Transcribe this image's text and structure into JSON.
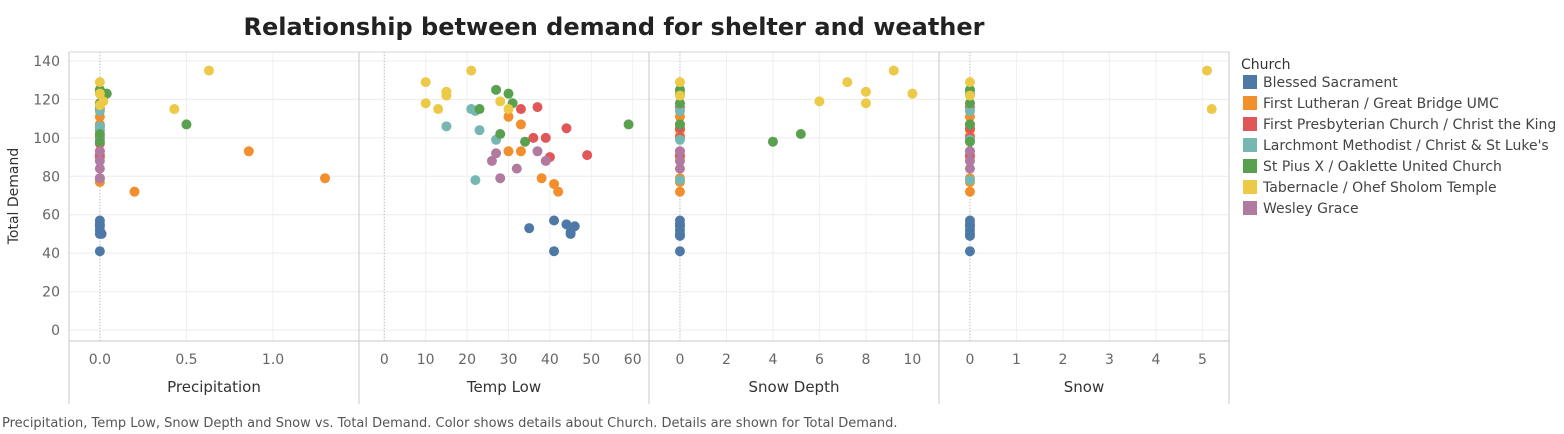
{
  "caption": "Precipitation, Temp Low, Snow Depth and Snow vs. Total Demand.  Color shows details about Church.  Details are shown for Total Demand.",
  "legend": {
    "title": "Church",
    "items": [
      {
        "label": "Blessed Sacrament",
        "color": "#4e79a7"
      },
      {
        "label": "First Lutheran / Great Bridge UMC",
        "color": "#f28e2b"
      },
      {
        "label": "First Presbyterian Church / Christ the King",
        "color": "#e15759"
      },
      {
        "label": "Larchmont Methodist / Christ & St Luke's",
        "color": "#76b7b2"
      },
      {
        "label": "St Pius X / Oaklette United Church",
        "color": "#59a14f"
      },
      {
        "label": "Tabernacle / Ohef Sholom Temple",
        "color": "#edc948"
      },
      {
        "label": "Wesley Grace",
        "color": "#b07aa1"
      }
    ]
  },
  "chart_data": {
    "type": "scatter",
    "title": "Relationship between demand for shelter and weather",
    "ylabel": "Total Demand",
    "ylim": [
      0,
      140
    ],
    "yticks": [
      0,
      20,
      40,
      60,
      80,
      100,
      120,
      140
    ],
    "grid": true,
    "legend_position": "right",
    "panels": [
      {
        "xlabel": "Precipitation",
        "xlim": [
          -0.08,
          1.45
        ],
        "xticks": [
          0.0,
          0.5,
          1.0
        ],
        "tick_decimals": 1,
        "points": [
          {
            "s": 0,
            "x": 0,
            "y": 57
          },
          {
            "s": 0,
            "x": 0,
            "y": 55
          },
          {
            "s": 0,
            "x": 0,
            "y": 54
          },
          {
            "s": 0,
            "x": 0,
            "y": 52
          },
          {
            "s": 0,
            "x": 0,
            "y": 50
          },
          {
            "s": 0,
            "x": 0.01,
            "y": 50
          },
          {
            "s": 0,
            "x": 0,
            "y": 41
          },
          {
            "s": 1,
            "x": 0,
            "y": 111
          },
          {
            "s": 1,
            "x": 0,
            "y": 107
          },
          {
            "s": 1,
            "x": 0,
            "y": 104
          },
          {
            "s": 1,
            "x": 0,
            "y": 101
          },
          {
            "s": 1,
            "x": 0,
            "y": 93
          },
          {
            "s": 1,
            "x": 0,
            "y": 79
          },
          {
            "s": 1,
            "x": 0,
            "y": 77
          },
          {
            "s": 1,
            "x": 0.2,
            "y": 72
          },
          {
            "s": 1,
            "x": 0.86,
            "y": 93
          },
          {
            "s": 1,
            "x": 1.3,
            "y": 79
          },
          {
            "s": 2,
            "x": 0,
            "y": 115
          },
          {
            "s": 2,
            "x": 0,
            "y": 106
          },
          {
            "s": 2,
            "x": 0,
            "y": 100
          },
          {
            "s": 2,
            "x": 0,
            "y": 97
          },
          {
            "s": 2,
            "x": 0,
            "y": 91
          },
          {
            "s": 2,
            "x": 0,
            "y": 90
          },
          {
            "s": 3,
            "x": 0,
            "y": 114
          },
          {
            "s": 3,
            "x": 0,
            "y": 106
          },
          {
            "s": 3,
            "x": 0,
            "y": 104
          },
          {
            "s": 3,
            "x": 0,
            "y": 99
          },
          {
            "s": 3,
            "x": 0,
            "y": 79
          },
          {
            "s": 4,
            "x": 0,
            "y": 125
          },
          {
            "s": 4,
            "x": 0,
            "y": 124
          },
          {
            "s": 4,
            "x": 0,
            "y": 118
          },
          {
            "s": 4,
            "x": 0,
            "y": 117
          },
          {
            "s": 4,
            "x": 0,
            "y": 102
          },
          {
            "s": 4,
            "x": 0,
            "y": 98
          },
          {
            "s": 4,
            "x": 0.04,
            "y": 123
          },
          {
            "s": 4,
            "x": 0.5,
            "y": 107
          },
          {
            "s": 5,
            "x": 0,
            "y": 129
          },
          {
            "s": 5,
            "x": 0,
            "y": 123
          },
          {
            "s": 5,
            "x": 0.02,
            "y": 119
          },
          {
            "s": 5,
            "x": 0,
            "y": 117
          },
          {
            "s": 5,
            "x": 0.43,
            "y": 115
          },
          {
            "s": 5,
            "x": 0.63,
            "y": 135
          },
          {
            "s": 6,
            "x": 0,
            "y": 93
          },
          {
            "s": 6,
            "x": 0,
            "y": 88
          },
          {
            "s": 6,
            "x": 0,
            "y": 84
          },
          {
            "s": 6,
            "x": 0,
            "y": 79
          }
        ]
      },
      {
        "xlabel": "Temp Low",
        "xlim": [
          -2,
          62
        ],
        "xticks": [
          0,
          10,
          20,
          30,
          40,
          50,
          60
        ],
        "tick_decimals": 0,
        "points": [
          {
            "s": 0,
            "x": 35,
            "y": 53
          },
          {
            "s": 0,
            "x": 41,
            "y": 57
          },
          {
            "s": 0,
            "x": 44,
            "y": 55
          },
          {
            "s": 0,
            "x": 45,
            "y": 50
          },
          {
            "s": 0,
            "x": 45,
            "y": 51
          },
          {
            "s": 0,
            "x": 46,
            "y": 54
          },
          {
            "s": 0,
            "x": 41,
            "y": 41
          },
          {
            "s": 1,
            "x": 30,
            "y": 111
          },
          {
            "s": 1,
            "x": 33,
            "y": 107
          },
          {
            "s": 1,
            "x": 30,
            "y": 93
          },
          {
            "s": 1,
            "x": 33,
            "y": 93
          },
          {
            "s": 1,
            "x": 38,
            "y": 79
          },
          {
            "s": 1,
            "x": 41,
            "y": 76
          },
          {
            "s": 1,
            "x": 42,
            "y": 72
          },
          {
            "s": 2,
            "x": 33,
            "y": 115
          },
          {
            "s": 2,
            "x": 37,
            "y": 116
          },
          {
            "s": 2,
            "x": 44,
            "y": 105
          },
          {
            "s": 2,
            "x": 36,
            "y": 100
          },
          {
            "s": 2,
            "x": 39,
            "y": 100
          },
          {
            "s": 2,
            "x": 40,
            "y": 90
          },
          {
            "s": 2,
            "x": 49,
            "y": 91
          },
          {
            "s": 3,
            "x": 21,
            "y": 115
          },
          {
            "s": 3,
            "x": 22,
            "y": 114
          },
          {
            "s": 3,
            "x": 15,
            "y": 106
          },
          {
            "s": 3,
            "x": 23,
            "y": 104
          },
          {
            "s": 3,
            "x": 27,
            "y": 99
          },
          {
            "s": 3,
            "x": 22,
            "y": 78
          },
          {
            "s": 4,
            "x": 27,
            "y": 125
          },
          {
            "s": 4,
            "x": 30,
            "y": 123
          },
          {
            "s": 4,
            "x": 31,
            "y": 118
          },
          {
            "s": 4,
            "x": 23,
            "y": 115
          },
          {
            "s": 4,
            "x": 28,
            "y": 102
          },
          {
            "s": 4,
            "x": 34,
            "y": 98
          },
          {
            "s": 4,
            "x": 59,
            "y": 107
          },
          {
            "s": 5,
            "x": 21,
            "y": 135
          },
          {
            "s": 5,
            "x": 10,
            "y": 129
          },
          {
            "s": 5,
            "x": 15,
            "y": 124
          },
          {
            "s": 5,
            "x": 15,
            "y": 122
          },
          {
            "s": 5,
            "x": 10,
            "y": 118
          },
          {
            "s": 5,
            "x": 13,
            "y": 115
          },
          {
            "s": 5,
            "x": 28,
            "y": 119
          },
          {
            "s": 5,
            "x": 30,
            "y": 115
          },
          {
            "s": 6,
            "x": 27,
            "y": 92
          },
          {
            "s": 6,
            "x": 26,
            "y": 88
          },
          {
            "s": 6,
            "x": 32,
            "y": 84
          },
          {
            "s": 6,
            "x": 28,
            "y": 79
          },
          {
            "s": 6,
            "x": 37,
            "y": 93
          },
          {
            "s": 6,
            "x": 39,
            "y": 88
          }
        ]
      },
      {
        "xlabel": "Snow Depth",
        "xlim": [
          -0.6,
          10.8
        ],
        "xticks": [
          0,
          2,
          4,
          6,
          8,
          10
        ],
        "tick_decimals": 0,
        "points": [
          {
            "s": 0,
            "x": 0,
            "y": 57
          },
          {
            "s": 0,
            "x": 0,
            "y": 55
          },
          {
            "s": 0,
            "x": 0,
            "y": 54
          },
          {
            "s": 0,
            "x": 0,
            "y": 52
          },
          {
            "s": 0,
            "x": 0,
            "y": 50
          },
          {
            "s": 0,
            "x": 0,
            "y": 49
          },
          {
            "s": 0,
            "x": 0,
            "y": 41
          },
          {
            "s": 1,
            "x": 0,
            "y": 111
          },
          {
            "s": 1,
            "x": 0,
            "y": 107
          },
          {
            "s": 1,
            "x": 0,
            "y": 104
          },
          {
            "s": 1,
            "x": 0,
            "y": 101
          },
          {
            "s": 1,
            "x": 0,
            "y": 93
          },
          {
            "s": 1,
            "x": 0,
            "y": 90
          },
          {
            "s": 1,
            "x": 0,
            "y": 79
          },
          {
            "s": 1,
            "x": 0,
            "y": 77
          },
          {
            "s": 1,
            "x": 0,
            "y": 72
          },
          {
            "s": 2,
            "x": 0,
            "y": 116
          },
          {
            "s": 2,
            "x": 0,
            "y": 105
          },
          {
            "s": 2,
            "x": 0,
            "y": 100
          },
          {
            "s": 2,
            "x": 0,
            "y": 91
          },
          {
            "s": 3,
            "x": 0,
            "y": 114
          },
          {
            "s": 3,
            "x": 0,
            "y": 99
          },
          {
            "s": 3,
            "x": 0,
            "y": 78
          },
          {
            "s": 4,
            "x": 0,
            "y": 125
          },
          {
            "s": 4,
            "x": 0,
            "y": 123
          },
          {
            "s": 4,
            "x": 0,
            "y": 118
          },
          {
            "s": 4,
            "x": 0,
            "y": 107
          },
          {
            "s": 4,
            "x": 4,
            "y": 98
          },
          {
            "s": 4,
            "x": 5.2,
            "y": 102
          },
          {
            "s": 5,
            "x": 0,
            "y": 129
          },
          {
            "s": 5,
            "x": 0,
            "y": 122
          },
          {
            "s": 5,
            "x": 6,
            "y": 119
          },
          {
            "s": 5,
            "x": 7.2,
            "y": 129
          },
          {
            "s": 5,
            "x": 8,
            "y": 124
          },
          {
            "s": 5,
            "x": 8,
            "y": 118
          },
          {
            "s": 5,
            "x": 9.2,
            "y": 135
          },
          {
            "s": 5,
            "x": 10,
            "y": 123
          },
          {
            "s": 6,
            "x": 0,
            "y": 93
          },
          {
            "s": 6,
            "x": 0,
            "y": 88
          },
          {
            "s": 6,
            "x": 0,
            "y": 84
          }
        ]
      },
      {
        "xlabel": "Snow",
        "xlim": [
          -0.3,
          5.4
        ],
        "xticks": [
          0,
          1,
          2,
          3,
          4,
          5
        ],
        "tick_decimals": 0,
        "points": [
          {
            "s": 0,
            "x": 0,
            "y": 57
          },
          {
            "s": 0,
            "x": 0,
            "y": 55
          },
          {
            "s": 0,
            "x": 0,
            "y": 54
          },
          {
            "s": 0,
            "x": 0,
            "y": 52
          },
          {
            "s": 0,
            "x": 0,
            "y": 50
          },
          {
            "s": 0,
            "x": 0,
            "y": 49
          },
          {
            "s": 0,
            "x": 0,
            "y": 41
          },
          {
            "s": 1,
            "x": 0,
            "y": 111
          },
          {
            "s": 1,
            "x": 0,
            "y": 107
          },
          {
            "s": 1,
            "x": 0,
            "y": 104
          },
          {
            "s": 1,
            "x": 0,
            "y": 101
          },
          {
            "s": 1,
            "x": 0,
            "y": 93
          },
          {
            "s": 1,
            "x": 0,
            "y": 90
          },
          {
            "s": 1,
            "x": 0,
            "y": 79
          },
          {
            "s": 1,
            "x": 0,
            "y": 77
          },
          {
            "s": 1,
            "x": 0,
            "y": 72
          },
          {
            "s": 2,
            "x": 0,
            "y": 116
          },
          {
            "s": 2,
            "x": 0,
            "y": 105
          },
          {
            "s": 2,
            "x": 0,
            "y": 100
          },
          {
            "s": 2,
            "x": 0,
            "y": 91
          },
          {
            "s": 3,
            "x": 0,
            "y": 114
          },
          {
            "s": 3,
            "x": 0,
            "y": 99
          },
          {
            "s": 3,
            "x": 0,
            "y": 78
          },
          {
            "s": 4,
            "x": 0,
            "y": 125
          },
          {
            "s": 4,
            "x": 0,
            "y": 123
          },
          {
            "s": 4,
            "x": 0,
            "y": 118
          },
          {
            "s": 4,
            "x": 0,
            "y": 107
          },
          {
            "s": 4,
            "x": 0,
            "y": 98
          },
          {
            "s": 5,
            "x": 0,
            "y": 129
          },
          {
            "s": 5,
            "x": 0,
            "y": 122
          },
          {
            "s": 5,
            "x": 5.1,
            "y": 135
          },
          {
            "s": 5,
            "x": 5.2,
            "y": 115
          },
          {
            "s": 6,
            "x": 0,
            "y": 93
          },
          {
            "s": 6,
            "x": 0,
            "y": 88
          },
          {
            "s": 6,
            "x": 0,
            "y": 84
          }
        ]
      }
    ]
  }
}
